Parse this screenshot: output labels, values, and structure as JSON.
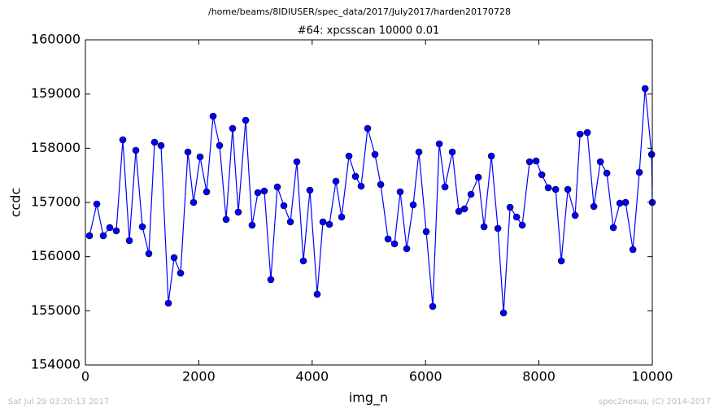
{
  "chart_data": {
    "type": "line",
    "suptitle": "/home/beams/8IDIUSER/spec_data/2017/July2017/harden20170728",
    "title": "#64: xpcsscan 10000 0.01",
    "x_label": "img_n",
    "y_label": "ccdc",
    "annotations": [
      "Sat Jul 29 03:20:13 2017",
      "spec2nexus, (C) 2014-2017"
    ],
    "x": [
      72,
      201,
      316,
      430,
      545,
      660,
      775,
      890,
      1005,
      1119,
      1220,
      1334,
      1464,
      1564,
      1679,
      1808,
      1908,
      2023,
      2138,
      2253,
      2367,
      2482,
      2597,
      2697,
      2827,
      2941,
      3042,
      3156,
      3271,
      3386,
      3501,
      3616,
      3730,
      3845,
      3960,
      4089,
      4190,
      4304,
      4419,
      4520,
      4649,
      4764,
      4864,
      4979,
      5108,
      5209,
      5338,
      5453,
      5553,
      5668,
      5783,
      5883,
      6012,
      6127,
      6242,
      6343,
      6472,
      6587,
      6687,
      6802,
      6931,
      7032,
      7161,
      7276,
      7376,
      7491,
      7606,
      7706,
      7835,
      7950,
      8051,
      8165,
      8295,
      8395,
      8510,
      8639,
      8725,
      8854,
      8969,
      9084,
      9198,
      9313,
      9428,
      9528,
      9658,
      9772,
      9873,
      9988,
      10000
    ],
    "series": [
      {
        "color": "#0000ff",
        "values": [
          156385,
          156970,
          156385,
          156535,
          156475,
          158155,
          156295,
          157960,
          156550,
          156055,
          158110,
          158050,
          155140,
          155980,
          155695,
          157930,
          157000,
          157840,
          157195,
          158590,
          158050,
          156685,
          158365,
          156820,
          158515,
          156580,
          157180,
          157210,
          155575,
          157285,
          156940,
          156640,
          157750,
          155920,
          157225,
          155305,
          156640,
          156595,
          157390,
          156730,
          157855,
          157480,
          157300,
          158365,
          157885,
          157330,
          156325,
          156235,
          157195,
          156145,
          156955,
          157930,
          156460,
          155080,
          158080,
          157285,
          157930,
          156835,
          156880,
          157150,
          157465,
          156550,
          157855,
          156520,
          154960,
          156910,
          156730,
          156580,
          157750,
          157765,
          157510,
          157270,
          157240,
          155920,
          157240,
          156760,
          158260,
          158290,
          156925,
          157750,
          157540,
          156535,
          156985,
          157000,
          156130,
          157555,
          159100,
          157885,
          157000
        ]
      }
    ],
    "xlim": [
      0,
      10000
    ],
    "xticks": [
      0,
      2000,
      4000,
      6000,
      8000,
      10000
    ],
    "ylim": [
      154000,
      160000
    ],
    "yticks": [
      154000,
      155000,
      156000,
      157000,
      158000,
      159000,
      160000
    ],
    "grid": false
  }
}
